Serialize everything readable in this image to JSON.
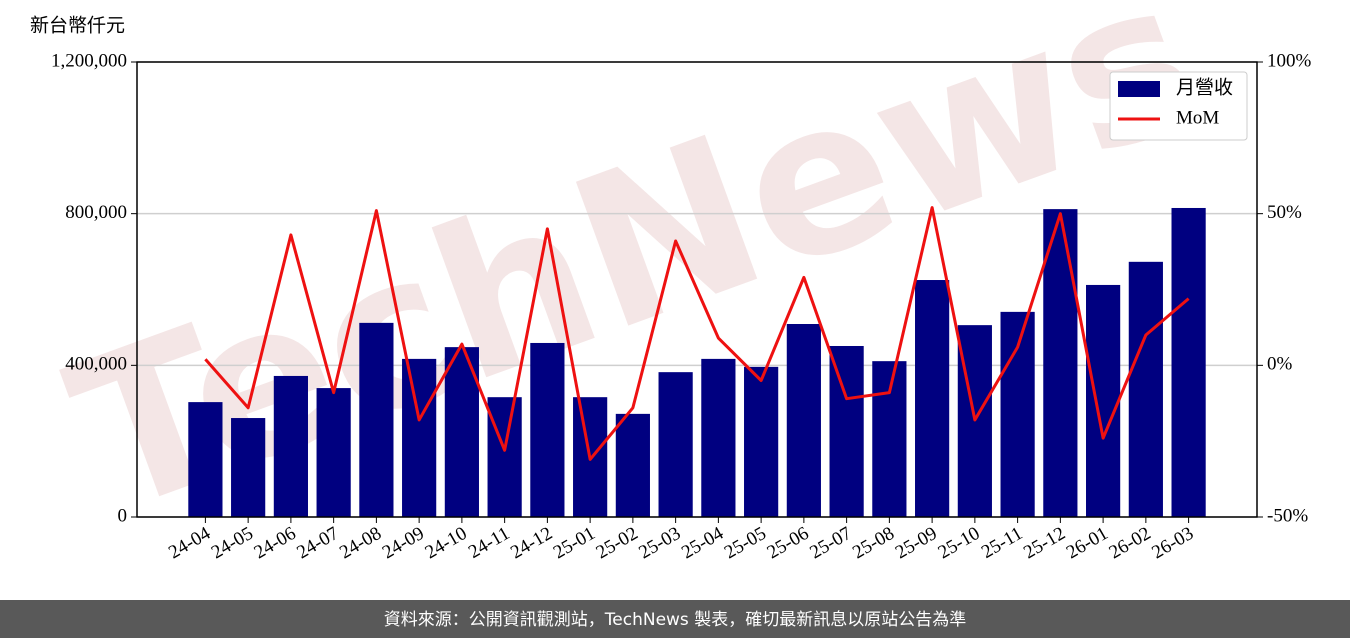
{
  "chart_data": {
    "type": "bar-line",
    "y_label": "新台幣仟元",
    "categories": [
      "24-04",
      "24-05",
      "24-06",
      "24-07",
      "24-08",
      "24-09",
      "24-10",
      "24-11",
      "24-12",
      "25-01",
      "25-02",
      "25-03",
      "25-04",
      "25-05",
      "25-06",
      "25-07",
      "25-08",
      "25-09",
      "25-10",
      "25-11",
      "25-12",
      "26-01",
      "26-02",
      "26-03"
    ],
    "series": [
      {
        "name": "月營收",
        "type": "bar",
        "color": "#000080",
        "values": [
          303000,
          261000,
          372000,
          340000,
          512000,
          417000,
          448000,
          316000,
          459000,
          316000,
          272000,
          382000,
          417000,
          396000,
          509000,
          451000,
          411000,
          625000,
          506000,
          541000,
          812000,
          612000,
          673000,
          815000
        ]
      },
      {
        "name": "MoM",
        "type": "line",
        "axis": "y2",
        "color": "#ee1111",
        "values": [
          2,
          -14,
          43,
          -9,
          51,
          -18,
          7,
          -28,
          45,
          -31,
          -14,
          41,
          9,
          -5,
          29,
          -11,
          -9,
          52,
          -18,
          6,
          50,
          -24,
          10,
          22
        ]
      }
    ],
    "ylim": [
      0,
      1200000
    ],
    "yticks": [
      {
        "value": 0,
        "label": "0"
      },
      {
        "value": 400000,
        "label": "400,000"
      },
      {
        "value": 800000,
        "label": "800,000"
      },
      {
        "value": 1200000,
        "label": "1,200,000"
      }
    ],
    "y2lim": [
      -50,
      100
    ],
    "y2ticks": [
      {
        "value": -50,
        "label": "-50%"
      },
      {
        "value": 0,
        "label": "0%"
      },
      {
        "value": 50,
        "label": "50%"
      },
      {
        "value": 100,
        "label": "100%"
      }
    ],
    "grid": true,
    "legend": "upper right",
    "watermark": "TechNews",
    "source": "資料來源：公開資訊觀測站，TechNews 製表，確切最新訊息以原站公告為準"
  }
}
